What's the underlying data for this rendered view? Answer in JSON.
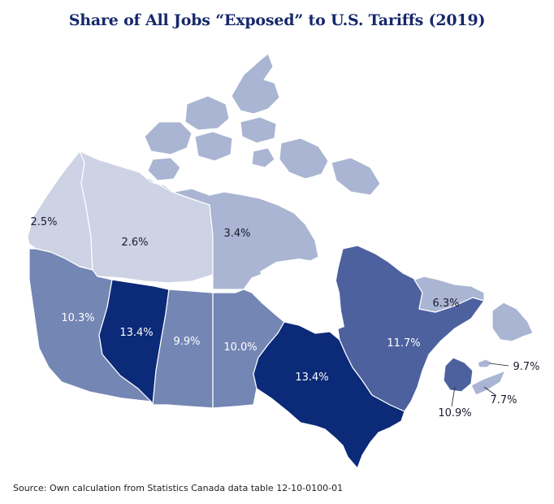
{
  "title": "Share of All Jobs “Exposed” to U.S. Tariffs (2019)",
  "source": "Source: Own calculation from Statistics Canada data table 12-10-0100-01",
  "colors": {
    "very_light": "#cdd3e4",
    "light": "#a9b5d2",
    "medium": "#7486b4",
    "medium_dark": "#4d619f",
    "dark": "#0b2a78",
    "border": "#ffffff"
  },
  "regions": [
    {
      "id": "yukon",
      "value": "2.5%",
      "shade": "very_light"
    },
    {
      "id": "northwest-territories",
      "value": "2.6%",
      "shade": "very_light"
    },
    {
      "id": "nunavut",
      "value": "3.4%",
      "shade": "light"
    },
    {
      "id": "british-columbia",
      "value": "10.3%",
      "shade": "medium"
    },
    {
      "id": "alberta",
      "value": "13.4%",
      "shade": "dark"
    },
    {
      "id": "saskatchewan",
      "value": "9.9%",
      "shade": "medium"
    },
    {
      "id": "manitoba",
      "value": "10.0%",
      "shade": "medium"
    },
    {
      "id": "ontario",
      "value": "13.4%",
      "shade": "dark"
    },
    {
      "id": "quebec",
      "value": "11.7%",
      "shade": "medium_dark"
    },
    {
      "id": "newfoundland-labrador",
      "value": "6.3%",
      "shade": "light"
    },
    {
      "id": "new-brunswick",
      "value": "10.9%",
      "shade": "medium_dark"
    },
    {
      "id": "nova-scotia",
      "value": "7.7%",
      "shade": "light"
    },
    {
      "id": "prince-edward-island",
      "value": "9.7%",
      "shade": "light"
    }
  ]
}
